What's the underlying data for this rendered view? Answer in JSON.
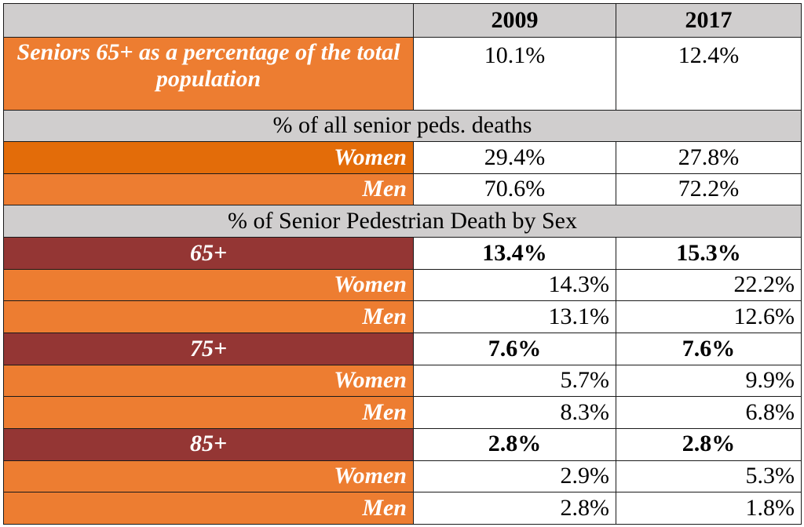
{
  "header": {
    "corner": "",
    "year1": "2009",
    "year2": "2017"
  },
  "population": {
    "label": "Seniors 65+ as a percentage of the total population",
    "v2009": "10.1%",
    "v2017": "12.4%"
  },
  "section_all_deaths": {
    "title": "% of all senior peds. deaths",
    "rows": [
      {
        "label": "Women",
        "v2009": "29.4%",
        "v2017": "27.8%"
      },
      {
        "label": "Men",
        "v2009": "70.6%",
        "v2017": "72.2%"
      }
    ]
  },
  "section_by_sex": {
    "title": "% of Senior Pedestrian Death by Sex",
    "groups": [
      {
        "age": "65+",
        "v2009": "13.4%",
        "v2017": "15.3%",
        "rows": [
          {
            "label": "Women",
            "v2009": "14.3%",
            "v2017": "22.2%"
          },
          {
            "label": "Men",
            "v2009": "13.1%",
            "v2017": "12.6%"
          }
        ]
      },
      {
        "age": "75+",
        "v2009": "7.6%",
        "v2017": "7.6%",
        "rows": [
          {
            "label": "Women",
            "v2009": "5.7%",
            "v2017": "9.9%"
          },
          {
            "label": "Men",
            "v2009": "8.3%",
            "v2017": "6.8%"
          }
        ]
      },
      {
        "age": "85+",
        "v2009": "2.8%",
        "v2017": "2.8%",
        "rows": [
          {
            "label": "Women",
            "v2009": "2.9%",
            "v2017": "5.3%"
          },
          {
            "label": "Men",
            "v2009": "2.8%",
            "v2017": "1.8%"
          }
        ]
      }
    ]
  },
  "colors": {
    "header_gray": "#d0cece",
    "label_orange": "#ed7d31",
    "label_orange_dark": "#e36c09",
    "age_maroon": "#943634"
  }
}
